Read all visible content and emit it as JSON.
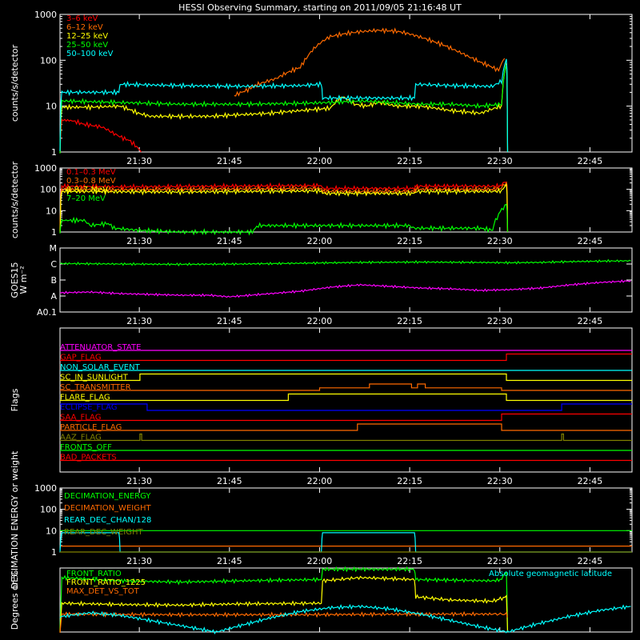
{
  "page": {
    "title": "HESSI Observing Summary, starting on 2011/09/05 21:16:48 UT",
    "foreground": "#ffffff",
    "background": "#000000"
  },
  "time_axis": {
    "tick_labels": [
      "21:30",
      "21:45",
      "22:00",
      "22:15",
      "22:30",
      "22:45"
    ],
    "tick_minutes_after_start": [
      13.2,
      28.2,
      43.2,
      58.2,
      73.2,
      88.2
    ],
    "start_minute": 0,
    "end_minute": 95.2
  },
  "chart_data": [
    {
      "id": "rates",
      "type": "line",
      "ylabel": "counts/s/detector",
      "yscale": "log",
      "ylim": [
        1,
        1000
      ],
      "y_tick_labels": [
        "1",
        "10",
        "100",
        "1000"
      ],
      "y_ticks": [
        1,
        10,
        100,
        1000
      ],
      "x_unit": "minutes after 21:16:48 UT",
      "series": [
        {
          "name": "3–6 keV",
          "color": "#ff0000",
          "x": [
            0,
            0.3,
            2,
            4,
            7,
            9,
            10.5,
            11.5,
            13,
            13.5
          ],
          "y": [
            1,
            5,
            4.8,
            4,
            3.5,
            2.5,
            2,
            1.8,
            1.2,
            1
          ]
        },
        {
          "name": "6–12 keV",
          "color": "#ff6a00",
          "x": [
            29,
            31,
            33,
            36,
            38,
            40,
            41,
            43,
            45,
            48,
            50,
            53,
            56,
            58,
            60,
            62,
            64,
            66,
            68,
            70,
            72,
            73,
            74
          ],
          "y": [
            17,
            22,
            30,
            40,
            55,
            70,
            110,
            220,
            330,
            390,
            420,
            450,
            430,
            380,
            320,
            260,
            210,
            160,
            120,
            90,
            70,
            60,
            110
          ]
        },
        {
          "name": "12–25 keV",
          "color": "#ffff00",
          "x": [
            0,
            0.3,
            5,
            10,
            13,
            15,
            20,
            25,
            30,
            35,
            40,
            45,
            47,
            49,
            51,
            53,
            56,
            60,
            65,
            70,
            73.5,
            74.3,
            74.5
          ],
          "y": [
            1,
            9.5,
            9.5,
            10,
            7,
            6,
            6,
            6,
            6.5,
            7,
            8,
            9,
            16,
            11,
            10,
            12,
            10,
            10,
            8,
            7,
            10,
            80,
            1
          ]
        },
        {
          "name": "25–50 keV",
          "color": "#00ff00",
          "x": [
            0,
            0.3,
            10,
            20,
            30,
            40,
            45,
            50,
            55,
            60,
            65,
            70,
            73.5,
            74.3,
            74.5
          ],
          "y": [
            1,
            13,
            12,
            11,
            11,
            11.5,
            12,
            13,
            12,
            11,
            11,
            10,
            11,
            80,
            1
          ]
        },
        {
          "name": "50–100 keV",
          "color": "#00ffff",
          "x": [
            0,
            0.3,
            9.8,
            10,
            20,
            30,
            40,
            43.5,
            43.7,
            59,
            59.2,
            65,
            72,
            73.5,
            74.3,
            74.5
          ],
          "y": [
            1,
            20,
            20,
            30,
            28,
            27,
            28,
            30,
            15,
            15,
            30,
            28,
            27,
            35,
            110,
            1
          ]
        }
      ]
    },
    {
      "id": "rates_high",
      "type": "line",
      "ylabel": "counts/s/detector",
      "yscale": "log",
      "ylim": [
        1,
        1000
      ],
      "y_tick_labels": [
        "1",
        "10",
        "100",
        "1000"
      ],
      "y_ticks": [
        1,
        10,
        100,
        1000
      ],
      "series": [
        {
          "name": "0.1–0.3 MeV",
          "color": "#ff0000",
          "x": [
            0,
            0.3,
            10,
            43.5,
            43.7,
            59,
            59.2,
            72,
            73.5,
            74.3,
            74.5
          ],
          "y": [
            1,
            140,
            130,
            150,
            110,
            110,
            140,
            140,
            150,
            250,
            1
          ]
        },
        {
          "name": "0.3–0.8 MeV",
          "color": "#ff6a00",
          "x": [
            0,
            0.3,
            10,
            43.5,
            43.7,
            59,
            59.2,
            72,
            73.5,
            74.3,
            74.5
          ],
          "y": [
            1,
            100,
            95,
            110,
            80,
            80,
            100,
            100,
            110,
            180,
            1
          ]
        },
        {
          "name": "0.8–7 MeV",
          "color": "#ffff00",
          "x": [
            0,
            0.3,
            20,
            43.5,
            43.7,
            59,
            59.2,
            72,
            73.5,
            74.3,
            74.5
          ],
          "y": [
            1,
            80,
            75,
            85,
            65,
            65,
            78,
            80,
            85,
            140,
            1
          ]
        },
        {
          "name": "7–20 MeV",
          "color": "#00ff00",
          "x": [
            0,
            0.3,
            4,
            5,
            8,
            9,
            13,
            20,
            32,
            33,
            58,
            59,
            65,
            70,
            72,
            73,
            74.3,
            74.5
          ],
          "y": [
            1,
            3.5,
            3.5,
            2,
            2.5,
            1.5,
            1.2,
            1,
            1,
            2,
            2,
            1.5,
            1.5,
            1.5,
            1.2,
            6,
            20,
            1
          ]
        }
      ]
    },
    {
      "id": "goes",
      "type": "line",
      "ylabel": "GOES15",
      "yunit": "W m⁻²",
      "y_tick_labels": [
        "A0.1",
        "A",
        "B",
        "C",
        "M"
      ],
      "y_ticks": [
        0,
        1,
        2,
        3,
        4
      ],
      "ylim": [
        0,
        4
      ],
      "series": [
        {
          "name": "",
          "color": "#00ff00",
          "x": [
            0,
            10,
            20,
            30,
            40,
            50,
            60,
            70,
            75,
            80,
            85,
            90,
            95
          ],
          "y": [
            3.03,
            3.0,
            2.98,
            3.0,
            3.05,
            3.1,
            3.12,
            3.1,
            3.08,
            3.1,
            3.15,
            3.18,
            3.2
          ]
        },
        {
          "name": "",
          "color": "#ff00ff",
          "x": [
            0,
            5,
            10,
            15,
            20,
            25,
            28,
            30,
            35,
            40,
            45,
            50,
            55,
            60,
            65,
            70,
            75,
            80,
            85,
            90,
            95
          ],
          "y": [
            1.2,
            1.25,
            1.15,
            1.1,
            1.05,
            1.05,
            0.95,
            1.0,
            1.15,
            1.3,
            1.55,
            1.7,
            1.6,
            1.5,
            1.45,
            1.35,
            1.4,
            1.5,
            1.7,
            1.85,
            1.95
          ]
        }
      ]
    },
    {
      "id": "flags",
      "type": "line",
      "ylabel": "Flags",
      "flags": [
        {
          "name": "ATTENUATOR_STATE",
          "color": "#ff00ff",
          "segments": [
            [
              0,
              95.2,
              0
            ]
          ]
        },
        {
          "name": "GAP_FLAG",
          "color": "#ff0000",
          "segments": [
            [
              0,
              74.3,
              0
            ],
            [
              74.3,
              95.2,
              1
            ]
          ]
        },
        {
          "name": "NON_SOLAR_EVENT",
          "color": "#00ffff",
          "segments": [
            [
              0,
              95.2,
              0
            ]
          ]
        },
        {
          "name": "SC_IN_SUNLIGHT",
          "color": "#ffff00",
          "segments": [
            [
              0,
              13.3,
              0
            ],
            [
              13.3,
              74.3,
              1
            ],
            [
              74.3,
              95.2,
              0
            ]
          ]
        },
        {
          "name": "SC_TRANSMITTER",
          "color": "#ff6a00",
          "segments": [
            [
              0,
              43.2,
              0
            ],
            [
              43.2,
              51.5,
              0.4
            ],
            [
              51.5,
              58.5,
              1
            ],
            [
              58.5,
              59.5,
              0.4
            ],
            [
              59.5,
              60.8,
              1
            ],
            [
              60.8,
              73.5,
              0.4
            ],
            [
              73.5,
              95.2,
              0
            ]
          ]
        },
        {
          "name": "FLARE_FLAG",
          "color": "#ffff00",
          "segments": [
            [
              0,
              38,
              0
            ],
            [
              38,
              74.3,
              1
            ],
            [
              74.3,
              95.2,
              0
            ]
          ]
        },
        {
          "name": "ECLIPSE_FLAG",
          "color": "#0000ff",
          "segments": [
            [
              0,
              14.5,
              1
            ],
            [
              14.5,
              83.5,
              0
            ],
            [
              83.5,
              95.2,
              1
            ]
          ]
        },
        {
          "name": "SAA_FLAG",
          "color": "#ff0000",
          "segments": [
            [
              0,
              73.5,
              0
            ],
            [
              73.5,
              95.2,
              1
            ]
          ]
        },
        {
          "name": "PARTICLE_FLAG",
          "color": "#ff6a00",
          "segments": [
            [
              0,
              49.5,
              0
            ],
            [
              49.5,
              73.5,
              1
            ],
            [
              73.5,
              95.2,
              0
            ]
          ]
        },
        {
          "name": "AAZ_FLAG",
          "color": "#808000",
          "segments": [
            [
              0,
              13.3,
              0
            ],
            [
              13.3,
              13.6,
              1
            ],
            [
              13.6,
              83.5,
              0
            ],
            [
              83.5,
              83.8,
              1
            ],
            [
              83.8,
              95.2,
              0
            ]
          ]
        },
        {
          "name": "FRONTS_OFF",
          "color": "#00ff00",
          "segments": [
            [
              0,
              95.2,
              0
            ]
          ]
        },
        {
          "name": "BAD_PACKETS",
          "color": "#ff0000",
          "segments": [
            [
              0,
              95.2,
              0
            ]
          ]
        }
      ]
    },
    {
      "id": "decimation",
      "type": "line",
      "ylabel": "DECIMATION ENERGY or weight",
      "yscale": "log",
      "ylim": [
        1,
        1000
      ],
      "y_tick_labels": [
        "1",
        "10",
        "100",
        "1000"
      ],
      "y_ticks": [
        1,
        10,
        100,
        1000
      ],
      "series": [
        {
          "name": "DECIMATION_ENERGY",
          "color": "#00ff00",
          "x": [
            0,
            95.2
          ],
          "y": [
            10,
            10
          ]
        },
        {
          "name": "DECIMATION_WEIGHT",
          "color": "#ff6a00",
          "x": [
            0,
            95.2
          ],
          "y": [
            1.9,
            1.9
          ]
        },
        {
          "name": "REAR_DEC_CHAN/128",
          "color": "#00ffff",
          "x": [
            0,
            0.3,
            9.8,
            10,
            43.5,
            43.7,
            59,
            59.2,
            95.2
          ],
          "y": [
            1,
            8,
            8,
            1,
            1,
            8,
            8,
            1,
            1
          ]
        },
        {
          "name": "REAR_DEC_WEIGHT",
          "color": "#808000",
          "x": [
            0,
            95.2
          ],
          "y": [
            1,
            1
          ]
        }
      ]
    },
    {
      "id": "ratios",
      "type": "line",
      "ylabel": "Degrees or %",
      "ylim": [
        0,
        100
      ],
      "annotation": "Absolute geomagnetic latitude",
      "series": [
        {
          "name": "FRONT_RATIO",
          "color": "#00ff00",
          "x": [
            0,
            0.3,
            10,
            20,
            30,
            43.5,
            43.7,
            59,
            59.2,
            72,
            73.5,
            74.3,
            74.5
          ],
          "y": [
            0,
            85,
            80,
            78,
            80,
            82,
            98,
            98,
            82,
            80,
            82,
            95,
            0
          ]
        },
        {
          "name": "FRONT_RATIO_1225",
          "color": "#ffff00",
          "x": [
            0,
            0.3,
            10,
            20,
            30,
            43.5,
            43.7,
            50,
            59,
            59.2,
            65,
            72,
            74.3,
            74.5
          ],
          "y": [
            0,
            45,
            43,
            42,
            44,
            45,
            80,
            85,
            82,
            55,
            50,
            48,
            55,
            0
          ]
        },
        {
          "name": "MAX_DET_VS_TOT",
          "color": "#ff6a00",
          "x": [
            0,
            0.3,
            20,
            40,
            60,
            72,
            74.3,
            74.5
          ],
          "y": [
            0,
            28,
            27,
            27,
            28,
            28,
            28,
            25
          ]
        },
        {
          "name": "",
          "color": "#00ffff",
          "x": [
            0,
            5,
            10,
            15,
            20,
            26,
            30,
            35,
            40,
            45,
            50,
            55,
            60,
            65,
            70,
            74.5,
            76,
            80,
            85,
            90,
            95
          ],
          "y": [
            24,
            30,
            26,
            18,
            10,
            0,
            10,
            22,
            32,
            38,
            40,
            36,
            28,
            18,
            8,
            0,
            4,
            14,
            25,
            34,
            40
          ]
        }
      ]
    }
  ]
}
